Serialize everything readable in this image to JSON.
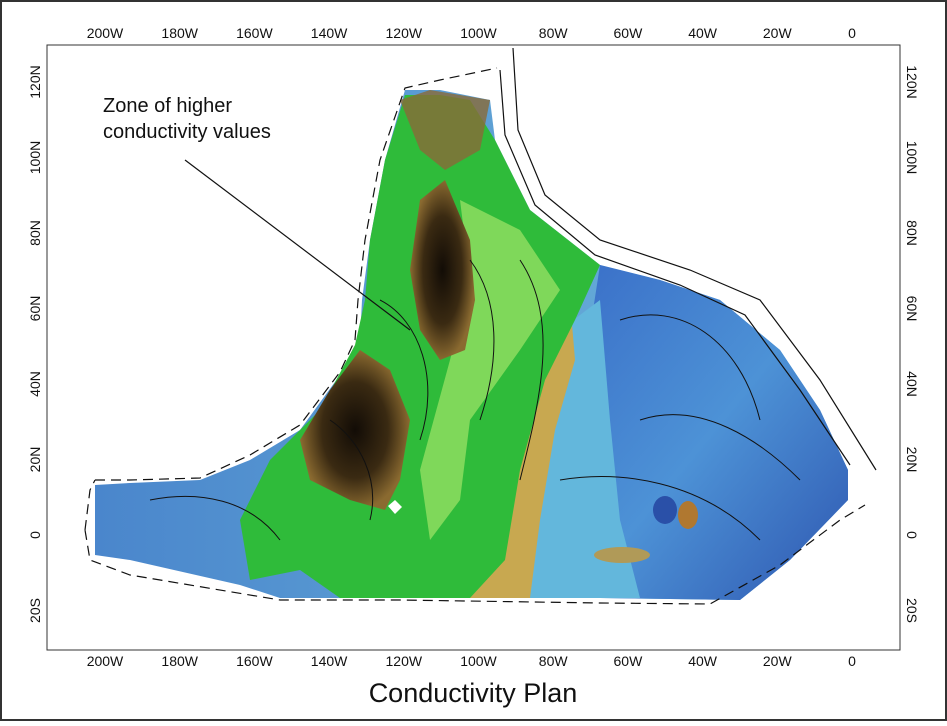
{
  "title": "Conductivity Plan",
  "annotation": [
    "Zone of higher",
    "conductivity values"
  ],
  "x_axis_labels": [
    "200W",
    "180W",
    "160W",
    "140W",
    "120W",
    "100W",
    "80W",
    "60W",
    "40W",
    "20W",
    "0"
  ],
  "y_axis_labels": [
    "120N",
    "100N",
    "80N",
    "60N",
    "40N",
    "20N",
    "0",
    "20S"
  ]
}
